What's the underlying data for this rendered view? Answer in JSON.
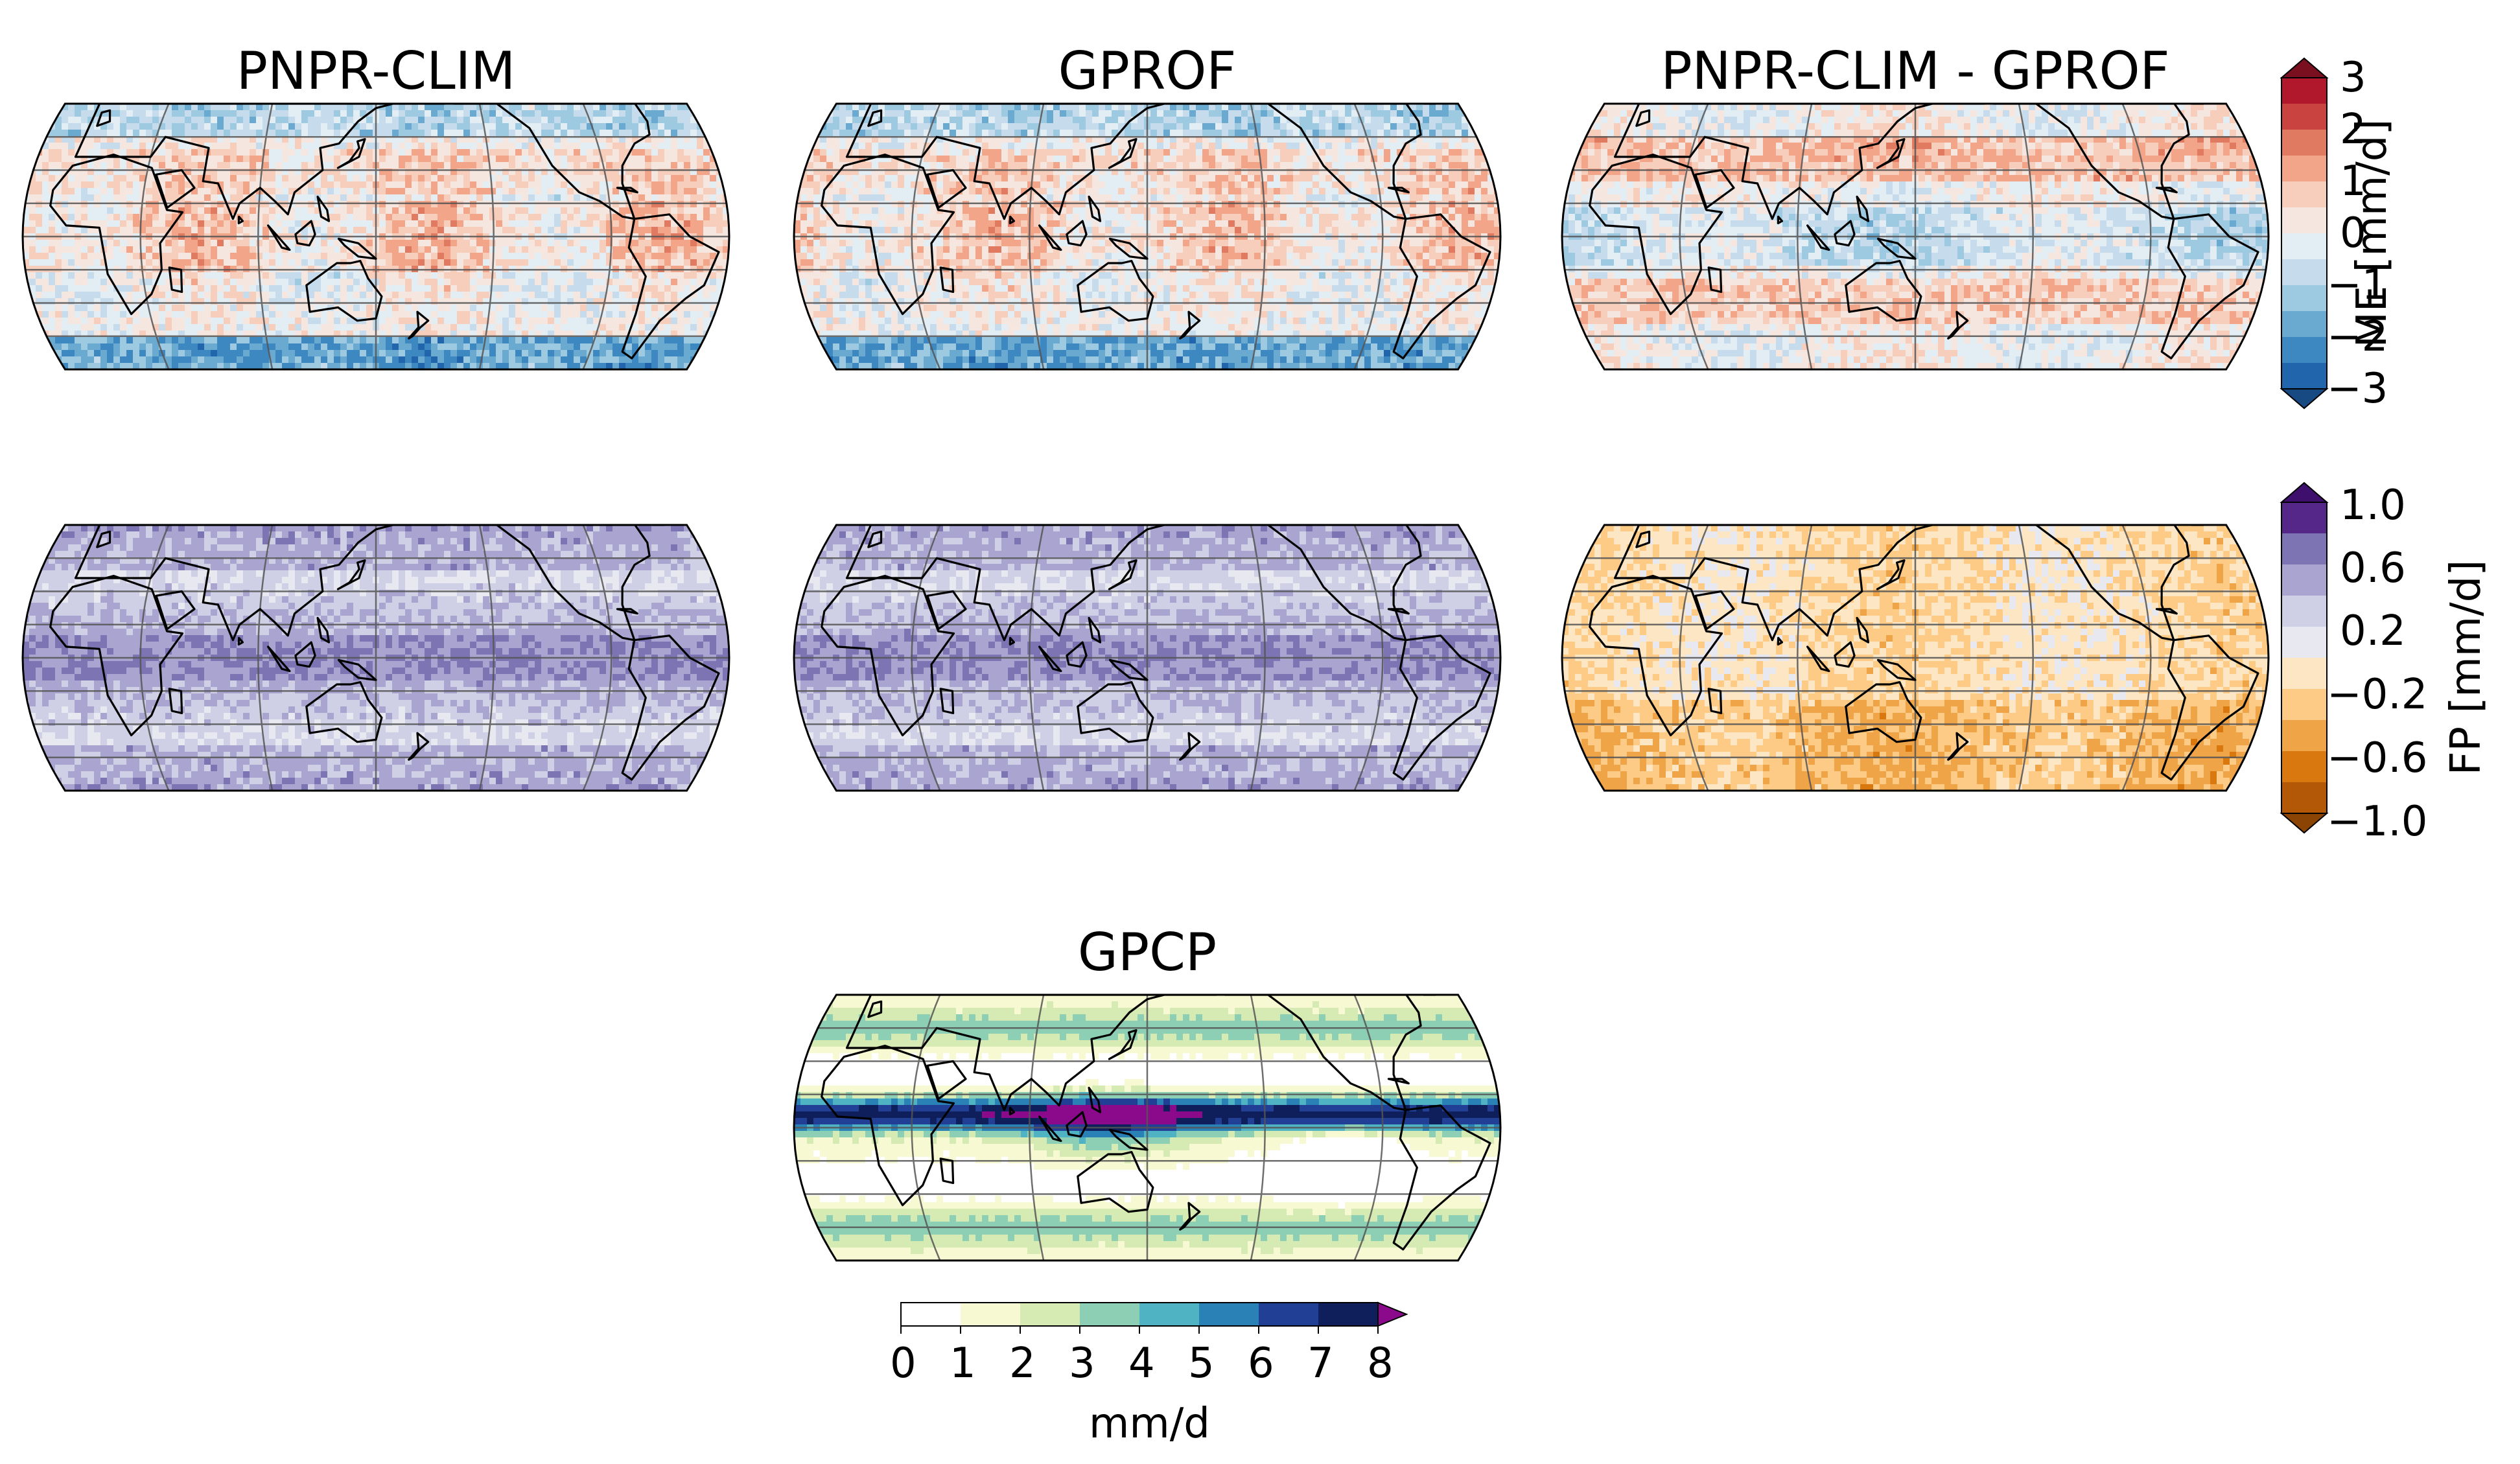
{
  "panels": [
    {
      "id": "pnpr-me",
      "title": "PNPR-CLIM",
      "field": "me",
      "seed": 11,
      "variant": "pnpr"
    },
    {
      "id": "gprof-me",
      "title": "GPROF",
      "field": "me",
      "seed": 23,
      "variant": "gprof"
    },
    {
      "id": "diff-me",
      "title": "PNPR-CLIM - GPROF",
      "field": "me",
      "seed": 37,
      "variant": "diff"
    },
    {
      "id": "pnpr-fp",
      "title": "",
      "field": "fp",
      "seed": 41,
      "variant": "pnpr"
    },
    {
      "id": "gprof-fp",
      "title": "",
      "field": "fp",
      "seed": 53,
      "variant": "gprof"
    },
    {
      "id": "diff-fp",
      "title": "",
      "field": "fp",
      "seed": 67,
      "variant": "diff"
    },
    {
      "id": "gpcp",
      "title": "GPCP",
      "field": "precip",
      "seed": 79,
      "variant": "gpcp"
    }
  ],
  "colorbars": {
    "me": {
      "label": "ME [mm/d]",
      "ticks": [
        "3",
        "2",
        "1",
        "0",
        "−1",
        "−2",
        "−3"
      ],
      "levels": [
        -3,
        3
      ],
      "colors": [
        "#2166ac",
        "#3d88c0",
        "#6aa9d0",
        "#9ecae1",
        "#c6dcec",
        "#e3edf4",
        "#f6e6e0",
        "#f7cdbb",
        "#f3a58a",
        "#e07b61",
        "#c94440",
        "#b2182b"
      ],
      "under": "#174a82",
      "over": "#7a0f1f"
    },
    "fp": {
      "label": "FP [mm/d]",
      "ticks": [
        "1.0",
        "0.6",
        "0.2",
        "−0.2",
        "−0.6",
        "−1.0"
      ],
      "levels": [
        -1,
        1
      ],
      "colors": [
        "#b35806",
        "#d8780f",
        "#f0a448",
        "#fdcb86",
        "#fde6c4",
        "#e8e8f0",
        "#cfd0e6",
        "#a9a5d0",
        "#7d74b3",
        "#542788"
      ],
      "under": "#8c4404",
      "over": "#3f0f6e"
    },
    "precip": {
      "label": "mm/d",
      "ticks": [
        "0",
        "1",
        "2",
        "3",
        "4",
        "5",
        "6",
        "7",
        "8"
      ],
      "levels": [
        0,
        8
      ],
      "colors": [
        "#ffffff",
        "#f6f9d2",
        "#d5ebb3",
        "#8ccfb4",
        "#4fb3c4",
        "#2a81b6",
        "#223f96",
        "#0e1f5c"
      ],
      "over": "#8b0a8b"
    }
  }
}
